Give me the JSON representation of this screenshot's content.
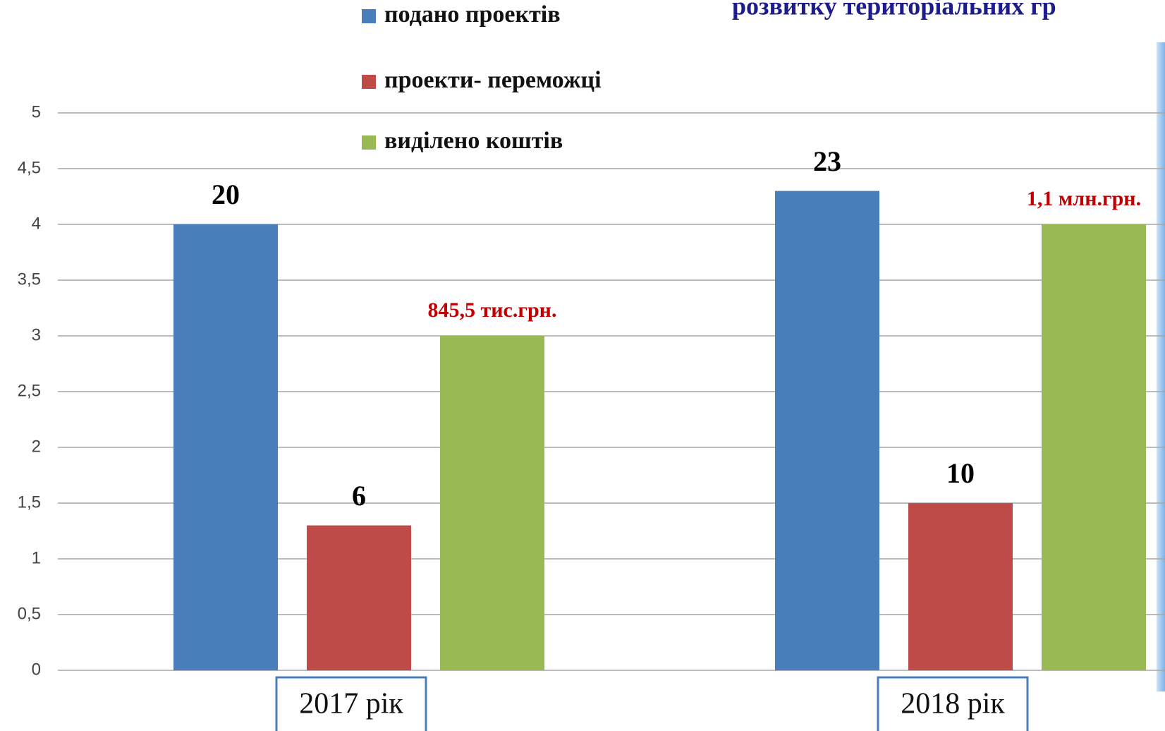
{
  "chart_data": {
    "type": "bar",
    "title": "розвитку територіальних гр",
    "categories": [
      "2017 рік",
      "2018 рік"
    ],
    "series": [
      {
        "name": "подано проектів",
        "color": "#4a7ebb",
        "values": [
          4,
          4.3
        ],
        "value_labels": [
          "20",
          "23"
        ]
      },
      {
        "name": "проекти- переможці",
        "color": "#be4b48",
        "values": [
          1.3,
          1.5
        ],
        "value_labels": [
          "6",
          "10"
        ]
      },
      {
        "name": "виділено коштів",
        "color": "#98b954",
        "values": [
          3,
          4
        ],
        "value_labels": [
          "845,5 тис.грн.",
          "1,1 млн.грн."
        ]
      }
    ],
    "ylim": [
      0,
      5
    ],
    "yticks": [
      0,
      {
        "value": 0.5,
        "label": "0,5"
      },
      1,
      {
        "value": 1.5,
        "label": "1,5"
      },
      2,
      {
        "value": 2.5,
        "label": "2,5"
      },
      3,
      {
        "value": 3.5,
        "label": "3,5"
      },
      4,
      {
        "value": 4.5,
        "label": "4,5"
      },
      5
    ],
    "grid": true,
    "legend": "top"
  }
}
